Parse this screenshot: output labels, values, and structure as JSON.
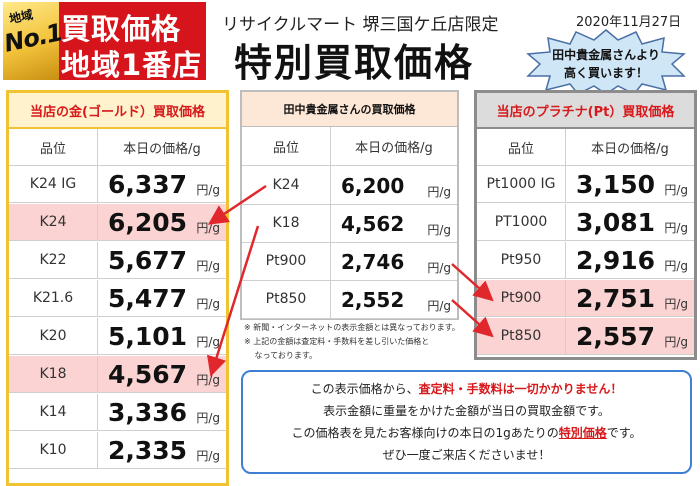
{
  "badge": {
    "medal_top": "地域",
    "medal_no": "No.1",
    "line1": "買取価格",
    "line2": "地域1番店"
  },
  "header": {
    "store": "リサイクルマート 堺三国ケ丘店限定",
    "date": "2020年11月27日",
    "title": "特別買取価格"
  },
  "starburst": {
    "line1": "田中貴金属さんより",
    "line2": "高く買います！"
  },
  "columns": {
    "grade": "品位",
    "price": "本日の価格/g"
  },
  "unit": "円/g",
  "gold": {
    "title": "当店の金(ゴールド）買取価格",
    "rows": [
      {
        "grade": "K24 IG",
        "price": "6,337",
        "highlight": false
      },
      {
        "grade": "K24",
        "price": "6,205",
        "highlight": true
      },
      {
        "grade": "K22",
        "price": "5,677",
        "highlight": false
      },
      {
        "grade": "K21.6",
        "price": "5,477",
        "highlight": false
      },
      {
        "grade": "K20",
        "price": "5,101",
        "highlight": false
      },
      {
        "grade": "K18",
        "price": "4,567",
        "highlight": true
      },
      {
        "grade": "K14",
        "price": "3,336",
        "highlight": false
      },
      {
        "grade": "K10",
        "price": "2,335",
        "highlight": false
      }
    ]
  },
  "tanaka": {
    "title": "田中貴金属さんの買取価格",
    "rows": [
      {
        "grade": "K24",
        "price": "6,200"
      },
      {
        "grade": "K18",
        "price": "4,562"
      },
      {
        "grade": "Pt900",
        "price": "2,746"
      },
      {
        "grade": "Pt850",
        "price": "2,552"
      }
    ],
    "notes": [
      "※ 新聞・インターネットの表示金額とは異なっております。",
      "※ 上記の金額は査定料・手数料を差し引いた価格と",
      "　 なっております。"
    ]
  },
  "platinum": {
    "title": "当店のプラチナ(Pt）買取価格",
    "rows": [
      {
        "grade": "Pt1000 IG",
        "price": "3,150",
        "highlight": false
      },
      {
        "grade": "PT1000",
        "price": "3,081",
        "highlight": false
      },
      {
        "grade": "Pt950",
        "price": "2,916",
        "highlight": false
      },
      {
        "grade": "Pt900",
        "price": "2,751",
        "highlight": true
      },
      {
        "grade": "Pt850",
        "price": "2,557",
        "highlight": true
      }
    ]
  },
  "info": {
    "l1a": "この表示価格から、",
    "l1b": "査定料・手数料は一切かかりません！",
    "l2": "表示金額に重量をかけた金額が当日の買取金額です。",
    "l3a": "この価格表を見たお客様向けの本日の1gあたりの",
    "l3b": "特別価格",
    "l3c": "です。",
    "l4": "ぜひ一度ご来店くださいませ！"
  },
  "colors": {
    "red": "#d7191c",
    "gold_border": "#f1c232",
    "plat_border": "#8c8c8c",
    "highlight": "#fbd3d3",
    "info_border": "#3f7fd3"
  }
}
